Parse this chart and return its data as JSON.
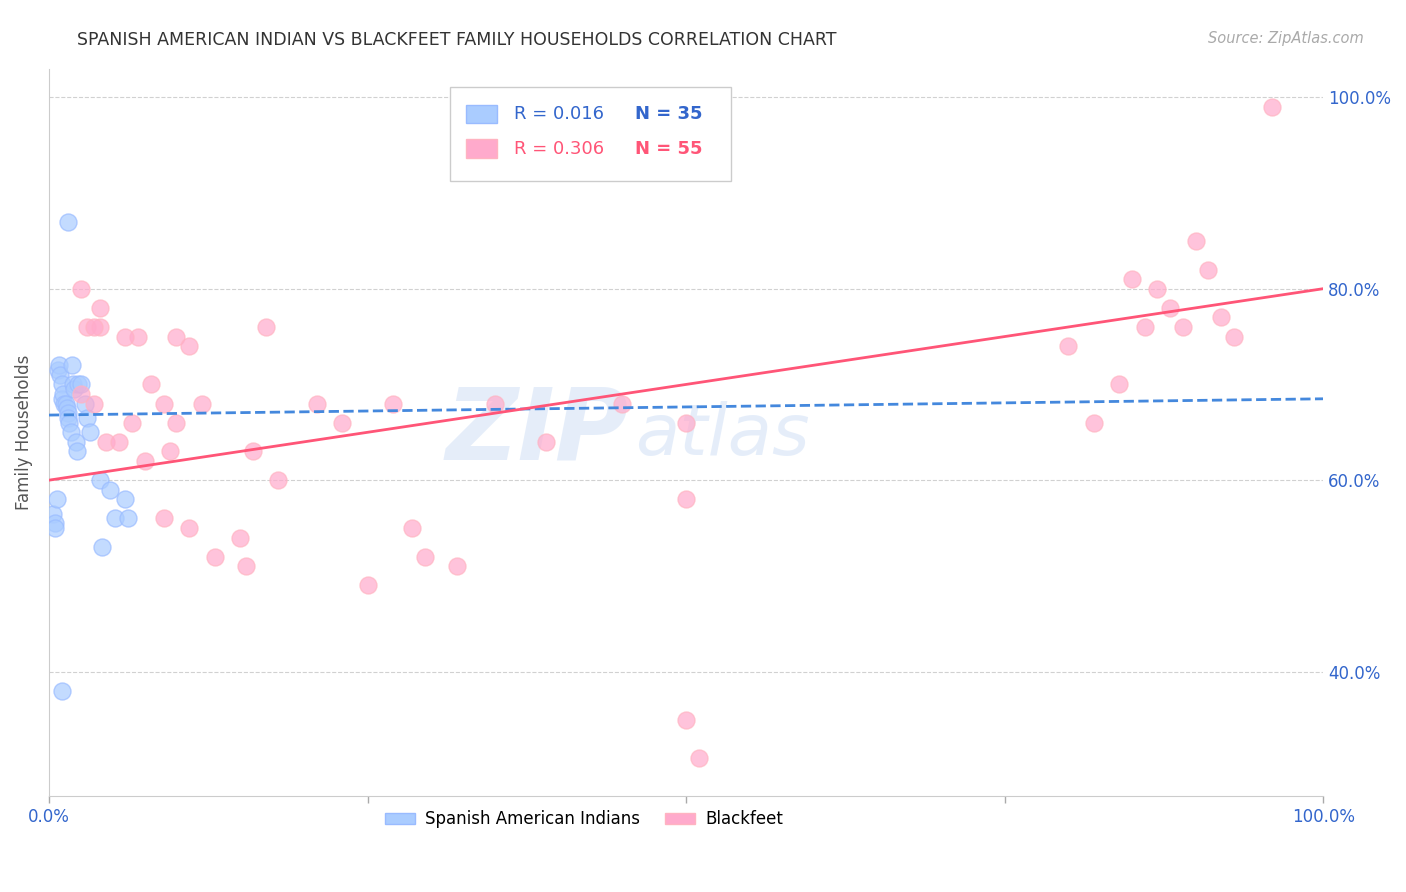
{
  "title": "SPANISH AMERICAN INDIAN VS BLACKFEET FAMILY HOUSEHOLDS CORRELATION CHART",
  "source": "Source: ZipAtlas.com",
  "ylabel": "Family Households",
  "y_tick_labels": [
    "40.0%",
    "60.0%",
    "80.0%",
    "100.0%"
  ],
  "y_tick_values": [
    0.4,
    0.6,
    0.8,
    1.0
  ],
  "legend_blue_r": "0.016",
  "legend_blue_n": "35",
  "legend_pink_r": "0.306",
  "legend_pink_n": "55",
  "legend_blue_label": "Spanish American Indians",
  "legend_pink_label": "Blackfeet",
  "blue_color": "#99BBFF",
  "pink_color": "#FFB3C1",
  "blue_face_color": "#AACCFF",
  "pink_face_color": "#FFAACC",
  "blue_line_color": "#4488DD",
  "pink_line_color": "#FF5577",
  "watermark_zip": "ZIP",
  "watermark_atlas": "atlas",
  "blue_scatter_x": [
    0.003,
    0.005,
    0.006,
    0.007,
    0.008,
    0.009,
    0.01,
    0.01,
    0.011,
    0.012,
    0.013,
    0.014,
    0.015,
    0.015,
    0.016,
    0.017,
    0.018,
    0.019,
    0.02,
    0.021,
    0.022,
    0.023,
    0.025,
    0.028,
    0.03,
    0.032,
    0.04,
    0.042,
    0.048,
    0.052,
    0.06,
    0.062,
    0.01,
    0.015,
    0.005
  ],
  "blue_scatter_y": [
    0.565,
    0.555,
    0.58,
    0.715,
    0.72,
    0.71,
    0.7,
    0.685,
    0.69,
    0.68,
    0.68,
    0.675,
    0.67,
    0.665,
    0.66,
    0.65,
    0.72,
    0.7,
    0.695,
    0.64,
    0.63,
    0.7,
    0.7,
    0.68,
    0.665,
    0.65,
    0.6,
    0.53,
    0.59,
    0.56,
    0.58,
    0.56,
    0.38,
    0.87,
    0.55
  ],
  "pink_scatter_x": [
    0.025,
    0.03,
    0.035,
    0.04,
    0.045,
    0.055,
    0.065,
    0.07,
    0.08,
    0.09,
    0.095,
    0.1,
    0.1,
    0.11,
    0.12,
    0.13,
    0.15,
    0.155,
    0.16,
    0.17,
    0.18,
    0.21,
    0.23,
    0.25,
    0.27,
    0.285,
    0.295,
    0.32,
    0.35,
    0.39,
    0.45,
    0.5,
    0.5,
    0.8,
    0.82,
    0.84,
    0.85,
    0.86,
    0.87,
    0.88,
    0.89,
    0.9,
    0.91,
    0.92,
    0.93,
    0.96,
    0.5,
    0.51,
    0.025,
    0.035,
    0.04,
    0.06,
    0.075,
    0.09,
    0.11
  ],
  "pink_scatter_y": [
    0.8,
    0.76,
    0.68,
    0.76,
    0.64,
    0.64,
    0.66,
    0.75,
    0.7,
    0.68,
    0.63,
    0.66,
    0.75,
    0.74,
    0.68,
    0.52,
    0.54,
    0.51,
    0.63,
    0.76,
    0.6,
    0.68,
    0.66,
    0.49,
    0.68,
    0.55,
    0.52,
    0.51,
    0.68,
    0.64,
    0.68,
    0.66,
    0.58,
    0.74,
    0.66,
    0.7,
    0.81,
    0.76,
    0.8,
    0.78,
    0.76,
    0.85,
    0.82,
    0.77,
    0.75,
    0.99,
    0.35,
    0.31,
    0.69,
    0.76,
    0.78,
    0.75,
    0.62,
    0.56,
    0.55
  ],
  "blue_trendline_x": [
    0.0,
    1.0
  ],
  "blue_trendline_y": [
    0.668,
    0.685
  ],
  "pink_trendline_x": [
    0.0,
    1.0
  ],
  "pink_trendline_y": [
    0.6,
    0.8
  ],
  "xlim": [
    0.0,
    1.0
  ],
  "ylim": [
    0.27,
    1.03
  ]
}
